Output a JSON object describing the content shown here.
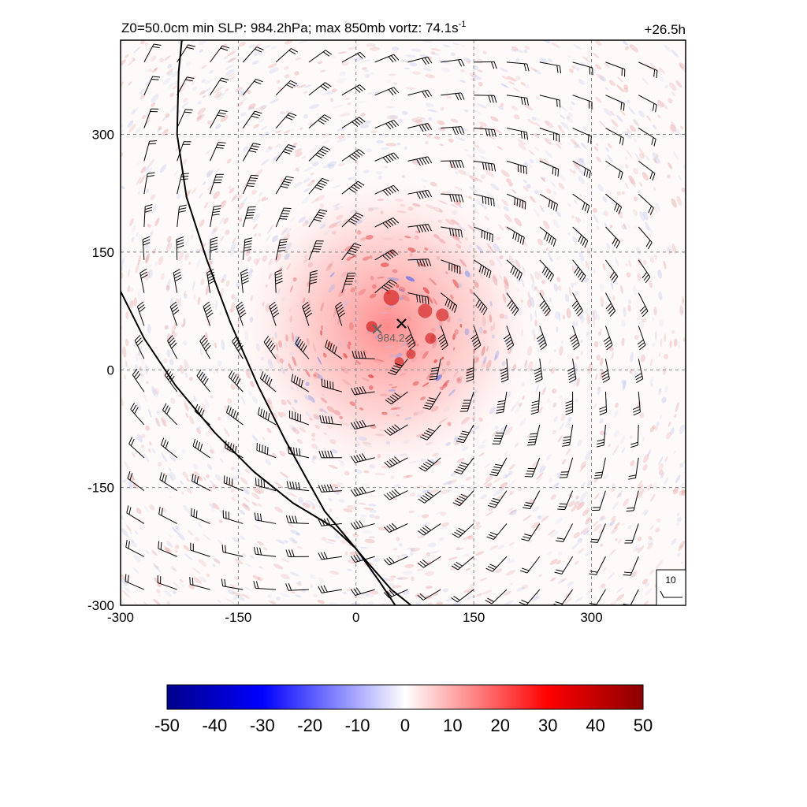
{
  "chart_data": {
    "type": "heatmap",
    "title": "Z0=50.0cm  min SLP: 984.2hPa; max 850mb vortz:  74.1s",
    "title_superscript": "-1",
    "forecast_time": "+26.5h",
    "x_axis": {
      "range": [
        -300,
        420
      ],
      "ticks": [
        -300,
        -150,
        0,
        150,
        300
      ],
      "tick_labels": [
        "-300",
        "-150",
        "0",
        "150",
        "300"
      ]
    },
    "y_axis": {
      "range": [
        -300,
        420
      ],
      "ticks": [
        -300,
        -150,
        0,
        150,
        300
      ],
      "tick_labels": [
        "-300",
        "-150",
        "0",
        "150",
        "300"
      ]
    },
    "grid": true,
    "colorbar": {
      "range": [
        -50,
        50
      ],
      "ticks": [
        -50,
        -40,
        -30,
        -20,
        -10,
        0,
        10,
        20,
        30,
        40,
        50
      ],
      "tick_labels": [
        "-50",
        "-40",
        "-30",
        "-20",
        "-10",
        "0",
        "10",
        "20",
        "30",
        "40",
        "50"
      ],
      "colors": [
        "#00008b",
        "#0000ff",
        "#ffffff",
        "#ff0000",
        "#8b0000"
      ]
    },
    "markers": [
      {
        "name": "min-slp-center",
        "x": 27,
        "y": 52,
        "color": "#666666",
        "label": "984.2"
      },
      {
        "name": "vortex-center",
        "x": 58,
        "y": 59,
        "color": "#000000",
        "label": ""
      }
    ],
    "vortex_center": [
      40,
      55
    ],
    "wind_barb_legend": "10",
    "coastlines": [
      [
        [
          -222,
          420
        ],
        [
          -226,
          380
        ],
        [
          -228,
          300
        ],
        [
          -216,
          220
        ],
        [
          -190,
          140
        ],
        [
          -160,
          60
        ],
        [
          -125,
          -20
        ],
        [
          -90,
          -90
        ],
        [
          -40,
          -180
        ],
        [
          10,
          -240
        ],
        [
          45,
          -280
        ],
        [
          70,
          -300
        ]
      ],
      [
        [
          -300,
          100
        ],
        [
          -270,
          40
        ],
        [
          -230,
          -20
        ],
        [
          -180,
          -80
        ],
        [
          -130,
          -130
        ],
        [
          -80,
          -170
        ],
        [
          -30,
          -200
        ],
        [
          0,
          -228
        ],
        [
          30,
          -270
        ],
        [
          50,
          -300
        ]
      ]
    ]
  }
}
